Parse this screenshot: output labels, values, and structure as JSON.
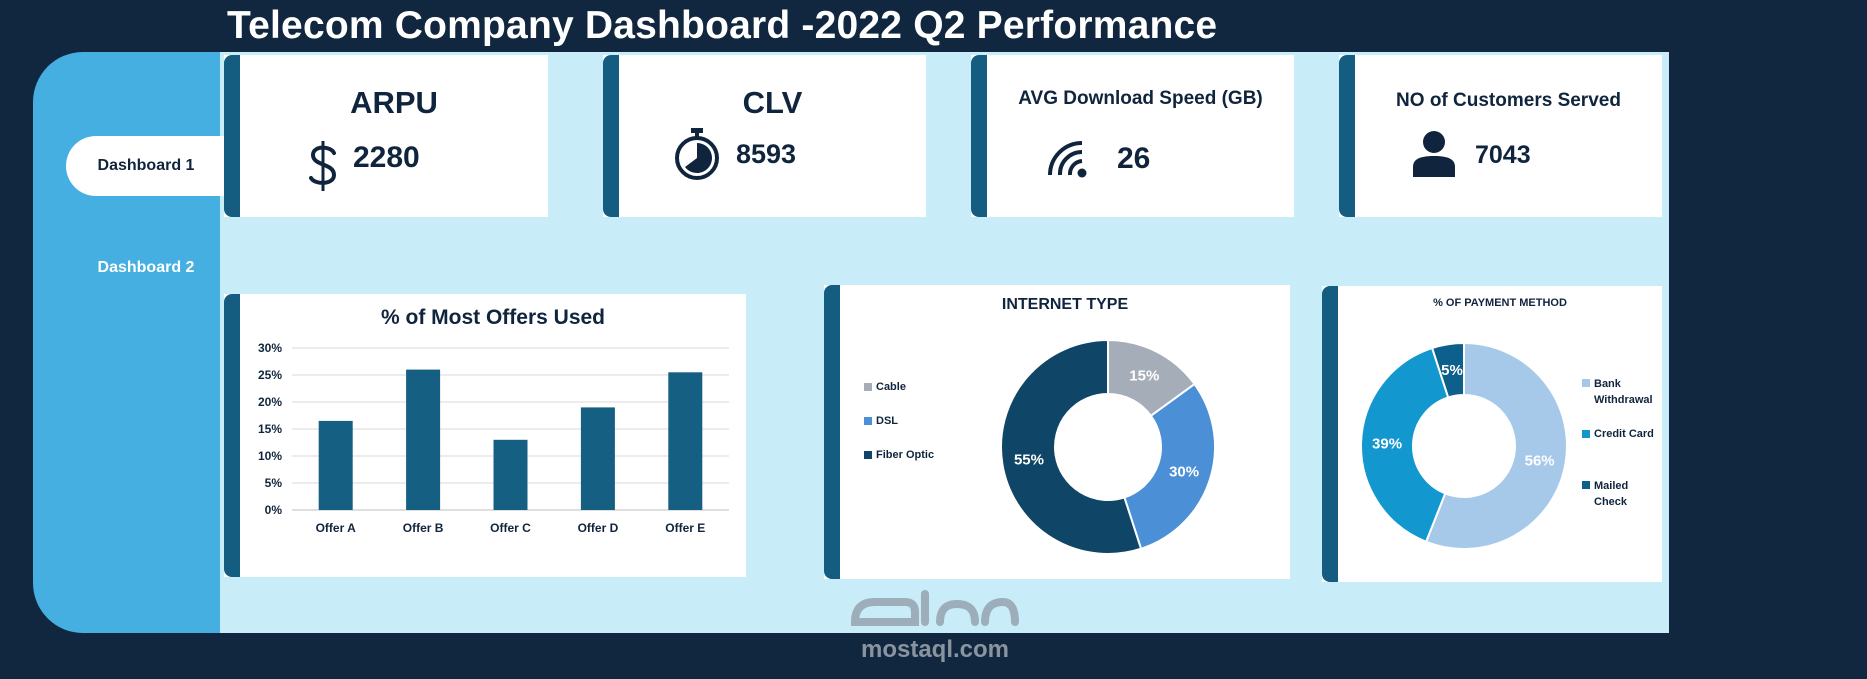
{
  "title": "Telecom Company Dashboard -2022 Q2 Performance",
  "nav": {
    "dashboard1": "Dashboard 1",
    "dashboard2": "Dashboard 2"
  },
  "kpis": [
    {
      "title": "ARPU",
      "value": "2280",
      "icon": "dollar-icon"
    },
    {
      "title": "CLV",
      "value": "8593",
      "icon": "stopwatch-icon"
    },
    {
      "title": "AVG Download Speed (GB)",
      "value": "26",
      "icon": "wifi-icon"
    },
    {
      "title": "NO of Customers Served",
      "value": "7043",
      "icon": "person-icon"
    }
  ],
  "colors": {
    "background": "#11273f",
    "sidebar": "#45afe2",
    "content": "#c9ecf9",
    "accent_bar": "#145d81",
    "bar_fill": "#155f82"
  },
  "watermark": "mostaql.com",
  "chart_data": [
    {
      "type": "bar",
      "title": "% of Most Offers Used",
      "categories": [
        "Offer A",
        "Offer B",
        "Offer C",
        "Offer D",
        "Offer E"
      ],
      "values": [
        16.5,
        26.0,
        13.0,
        19.0,
        25.5
      ],
      "yticks": [
        "0%",
        "5%",
        "10%",
        "15%",
        "20%",
        "25%",
        "30%"
      ],
      "ylim": [
        0,
        30
      ],
      "grid": true,
      "color": "#155f82"
    },
    {
      "type": "pie",
      "title": "INTERNET TYPE",
      "labels": [
        "Cable",
        "DSL",
        "Fiber Optic"
      ],
      "values": [
        15,
        30,
        55
      ],
      "data_labels": [
        "15%",
        "30%",
        "55%"
      ],
      "colors": [
        "#a5adb8",
        "#4b8fd6",
        "#0f4566"
      ],
      "legend_position": "left"
    },
    {
      "type": "pie",
      "title": "% OF PAYMENT METHOD",
      "labels": [
        "Bank Withdrawal",
        "Credit Card",
        "Mailed Check"
      ],
      "values": [
        56,
        39,
        5
      ],
      "data_labels": [
        "56%",
        "39%",
        "5%"
      ],
      "colors": [
        "#a6c9ea",
        "#1397cf",
        "#0d5f8c"
      ],
      "legend_position": "right"
    }
  ]
}
